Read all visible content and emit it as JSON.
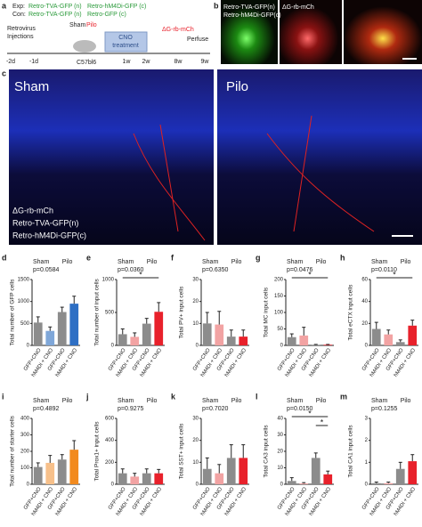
{
  "panel_a": {
    "letter": "a",
    "exp": "Exp:",
    "exp_1": "Retro-TVA-GFP (n)",
    "exp_2": "Retro-hM4Di-GFP (c)",
    "con": "Con:",
    "con_1": "Retro-TVA-GFP (n)",
    "con_2": "Retro-GFP (c)",
    "inj_1": "Retrovirus",
    "inj_2": "Injections",
    "sham": "Sham",
    "pilo": "Pilo",
    "mouse": "C57bl6",
    "cno_1": "CNO",
    "cno_2": "treatment",
    "rabies": "ΔG-rb-mCh",
    "perfuse": "Perfuse",
    "t1": "-2d",
    "t2": "-1d",
    "t3": "1w",
    "t4": "2w",
    "t5": "8w",
    "t6": "9w"
  },
  "panel_b": {
    "letter": "b",
    "label_1": "Retro-TVA-GFP(n)",
    "label_2": "Retro-hM4Di-GFP(c)",
    "label_3": "ΔG-rb-mCh"
  },
  "panel_c": {
    "letter": "c",
    "sham": "Sham",
    "pilo": "Pilo",
    "legend_1": "ΔG-rb-mCh",
    "legend_2": "Retro-TVA-GFP(n)",
    "legend_3": "Retro-hM4Di-GFP(c)"
  },
  "chart_data": [
    {
      "type": "bar",
      "letter": "d",
      "ylabel": "Total number of GFP cells",
      "groups": [
        "Sham",
        "Pilo"
      ],
      "p_label": "p=0.0584",
      "significance": [],
      "categories": [
        "GFP+CNO",
        "hM4Di + CNO",
        "GFP+CNO",
        "hM4Di + CNO"
      ],
      "values": [
        520,
        330,
        760,
        950
      ],
      "errors": [
        130,
        90,
        110,
        170
      ],
      "colors": [
        "#8c8c8c",
        "#7fa7d9",
        "#8c8c8c",
        "#2e6fc4"
      ],
      "ylim": [
        0,
        1500
      ],
      "yticks": [
        0,
        500,
        1000,
        1500
      ]
    },
    {
      "type": "bar",
      "letter": "e",
      "ylabel": "Total number of input cells",
      "groups": [
        "Sham",
        "Pilo"
      ],
      "p_label": "p=0.0360",
      "significance": [
        "*"
      ],
      "categories": [
        "GFP+CNO",
        "hM4Di + CNO",
        "GFP+CNO",
        "hM4Di + CNO"
      ],
      "values": [
        170,
        130,
        330,
        510
      ],
      "errors": [
        80,
        60,
        80,
        140
      ],
      "colors": [
        "#8c8c8c",
        "#f2a3a3",
        "#8c8c8c",
        "#e8212b"
      ],
      "ylim": [
        0,
        1000
      ],
      "yticks": [
        0,
        500,
        1000
      ]
    },
    {
      "type": "bar",
      "letter": "f",
      "ylabel": "Total PV+ input cells",
      "groups": [
        "Sham",
        "Pilo"
      ],
      "p_label": "p=0.6350",
      "significance": [],
      "categories": [
        "GFP+CNO",
        "hM4Di + CNO",
        "GFP+CNO",
        "hM4Di + CNO"
      ],
      "values": [
        10,
        9.5,
        4,
        4
      ],
      "errors": [
        5,
        6,
        3,
        3
      ],
      "colors": [
        "#8c8c8c",
        "#f2a3a3",
        "#8c8c8c",
        "#e8212b"
      ],
      "ylim": [
        0,
        30
      ],
      "yticks": [
        0,
        10,
        20,
        30
      ]
    },
    {
      "type": "bar",
      "letter": "g",
      "ylabel": "Total MC input cells",
      "groups": [
        "Sham",
        "Pilo"
      ],
      "p_label": "p=0.0476",
      "significance": [
        "*"
      ],
      "categories": [
        "GFP+CNO",
        "hM4Di + CNO",
        "GFP+CNO",
        "hM4Di + CNO"
      ],
      "values": [
        25,
        30,
        2,
        2
      ],
      "errors": [
        10,
        25,
        1,
        1
      ],
      "colors": [
        "#8c8c8c",
        "#f2a3a3",
        "#8c8c8c",
        "#e8212b"
      ],
      "ylim": [
        0,
        200
      ],
      "yticks": [
        0,
        50,
        100,
        150,
        200
      ]
    },
    {
      "type": "bar",
      "letter": "h",
      "ylabel": "Total eCTX input cells",
      "groups": [
        "Sham",
        "Pilo"
      ],
      "p_label": "p=0.0110",
      "significance": [
        "*"
      ],
      "categories": [
        "GFP+CNO",
        "hM4Di + CNO",
        "GFP+CNO",
        "hM4Di + CNO"
      ],
      "values": [
        15,
        10,
        3,
        18
      ],
      "errors": [
        6,
        4,
        2,
        5
      ],
      "colors": [
        "#8c8c8c",
        "#f2a3a3",
        "#8c8c8c",
        "#e8212b"
      ],
      "ylim": [
        0,
        60
      ],
      "yticks": [
        0,
        20,
        40,
        60
      ]
    },
    {
      "type": "bar",
      "letter": "i",
      "ylabel": "Total number of starter cells",
      "groups": [
        "Sham",
        "Pilo"
      ],
      "p_label": "p=0.4892",
      "significance": [],
      "categories": [
        "GFP+CNO",
        "hM4Di + CNO",
        "GFP+CNO",
        "hM4Di + CNO"
      ],
      "values": [
        105,
        130,
        150,
        210
      ],
      "errors": [
        25,
        45,
        30,
        55
      ],
      "colors": [
        "#8c8c8c",
        "#f7c08a",
        "#8c8c8c",
        "#f28a1e"
      ],
      "ylim": [
        0,
        400
      ],
      "yticks": [
        0,
        100,
        200,
        300,
        400
      ]
    },
    {
      "type": "bar",
      "letter": "j",
      "ylabel": "Total Prox1+ input cells",
      "groups": [
        "Sham",
        "Pilo"
      ],
      "p_label": "p=0.9275",
      "significance": [],
      "categories": [
        "GFP+CNO",
        "hM4Di + CNO",
        "GFP+CNO",
        "hM4Di + CNO"
      ],
      "values": [
        100,
        70,
        100,
        100
      ],
      "errors": [
        40,
        30,
        40,
        35
      ],
      "colors": [
        "#8c8c8c",
        "#f2a3a3",
        "#8c8c8c",
        "#e8212b"
      ],
      "ylim": [
        0,
        600
      ],
      "yticks": [
        0,
        200,
        400,
        600
      ]
    },
    {
      "type": "bar",
      "letter": "k",
      "ylabel": "Total SST+ input cells",
      "groups": [
        "Sham",
        "Pilo"
      ],
      "p_label": "p=0.7020",
      "significance": [],
      "categories": [
        "GFP+CNO",
        "hM4Di + CNO",
        "GFP+CNO",
        "hM4Di + CNO"
      ],
      "values": [
        7,
        5,
        12,
        12
      ],
      "errors": [
        5,
        4,
        6,
        6
      ],
      "colors": [
        "#8c8c8c",
        "#f2a3a3",
        "#8c8c8c",
        "#e8212b"
      ],
      "ylim": [
        0,
        30
      ],
      "yticks": [
        0,
        10,
        20,
        30
      ]
    },
    {
      "type": "bar",
      "letter": "l",
      "ylabel": "Total CA3 input cells",
      "groups": [
        "Sham",
        "Pilo"
      ],
      "p_label": "p=0.0150",
      "significance": [
        "*",
        "*"
      ],
      "categories": [
        "GFP+CNO",
        "hM4Di + CNO",
        "GFP+CNO",
        "hM4Di + CNO"
      ],
      "values": [
        2,
        0.5,
        16,
        6
      ],
      "errors": [
        2,
        0.5,
        3,
        2
      ],
      "colors": [
        "#8c8c8c",
        "#f2a3a3",
        "#8c8c8c",
        "#e8212b"
      ],
      "ylim": [
        0,
        40
      ],
      "yticks": [
        0,
        10,
        20,
        30,
        40
      ]
    },
    {
      "type": "bar",
      "letter": "m",
      "ylabel": "Total CA1 input cells",
      "groups": [
        "Sham",
        "Pilo"
      ],
      "p_label": "p=0.1255",
      "significance": [],
      "categories": [
        "GFP+CNO",
        "hM4Di + CNO",
        "GFP+CNO",
        "hM4Di + CNO"
      ],
      "values": [
        0.05,
        0.05,
        0.7,
        1.05
      ],
      "errors": [
        0.05,
        0.05,
        0.3,
        0.3
      ],
      "colors": [
        "#8c8c8c",
        "#f2a3a3",
        "#8c8c8c",
        "#e8212b"
      ],
      "ylim": [
        0,
        3
      ],
      "yticks": [
        0,
        1,
        2,
        3
      ]
    }
  ]
}
